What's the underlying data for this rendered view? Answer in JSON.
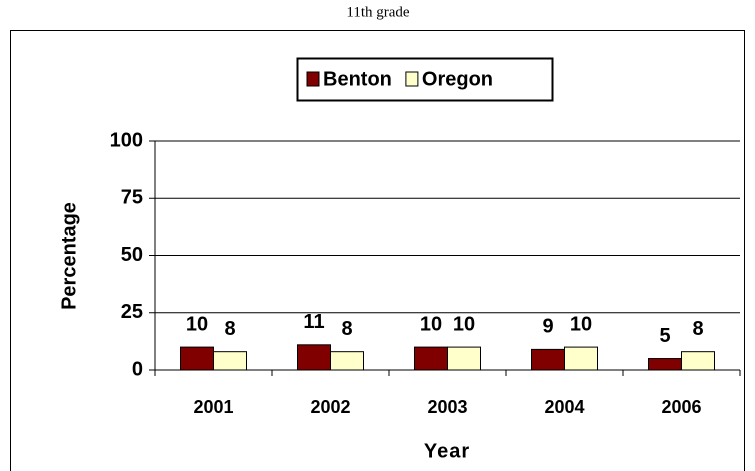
{
  "chart_data": {
    "type": "bar",
    "title": "11th grade",
    "x_label": "Year",
    "y_label": "Percentage",
    "categories": [
      "2001",
      "2002",
      "2003",
      "2004",
      "2006"
    ],
    "series": [
      {
        "name": "Benton",
        "color": "#800000",
        "values": [
          10,
          11,
          10,
          9,
          5
        ]
      },
      {
        "name": "Oregon",
        "color": "#ffffcc",
        "values": [
          8,
          8,
          10,
          10,
          8
        ]
      }
    ],
    "ylim": [
      0,
      100
    ],
    "yticks": [
      0,
      25,
      50,
      75,
      100
    ],
    "grid": true
  }
}
